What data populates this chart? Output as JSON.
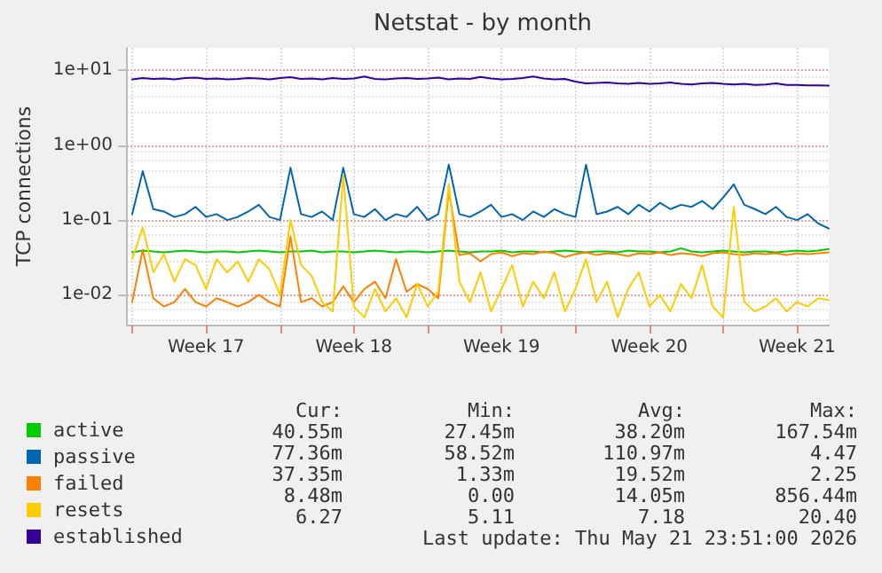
{
  "chart_data": {
    "type": "line",
    "title": "Netstat - by month",
    "ylabel": "TCP connections",
    "log": "y",
    "grid": true,
    "legend": "bottom left",
    "marker": "none",
    "line_style": "solid",
    "xlim": [
      "2026-04-18T18:00",
      "2026-05-22T00:00"
    ],
    "xticks": [
      {
        "value": "2026-04-19T00:00",
        "label": null
      },
      {
        "value": "2026-04-22T12:00",
        "label": "Week 17"
      },
      {
        "value": "2026-04-26T00:00",
        "label": null
      },
      {
        "value": "2026-04-29T12:00",
        "label": "Week 18"
      },
      {
        "value": "2026-05-03T00:00",
        "label": null
      },
      {
        "value": "2026-05-06T12:00",
        "label": "Week 19"
      },
      {
        "value": "2026-05-10T00:00",
        "label": null
      },
      {
        "value": "2026-05-13T12:00",
        "label": "Week 20"
      },
      {
        "value": "2026-05-17T00:00",
        "label": null
      },
      {
        "value": "2026-05-20T12:00",
        "label": "Week 21"
      }
    ],
    "ylim": [
      0.004,
      20
    ],
    "yticks": [
      {
        "value": 0.01,
        "label": "1e-02"
      },
      {
        "value": 0.1,
        "label": "1e-01"
      },
      {
        "value": 1,
        "label": "1e+00"
      },
      {
        "value": 10,
        "label": "1e+01"
      }
    ],
    "x": [
      "2026-04-19T00:00",
      "2026-04-19T12:00",
      "2026-04-20T00:00",
      "2026-04-20T12:00",
      "2026-04-21T00:00",
      "2026-04-21T12:00",
      "2026-04-22T00:00",
      "2026-04-22T12:00",
      "2026-04-23T00:00",
      "2026-04-23T12:00",
      "2026-04-24T00:00",
      "2026-04-24T12:00",
      "2026-04-25T00:00",
      "2026-04-25T12:00",
      "2026-04-26T00:00",
      "2026-04-26T12:00",
      "2026-04-27T00:00",
      "2026-04-27T12:00",
      "2026-04-28T00:00",
      "2026-04-28T12:00",
      "2026-04-29T00:00",
      "2026-04-29T12:00",
      "2026-04-30T00:00",
      "2026-04-30T12:00",
      "2026-05-01T00:00",
      "2026-05-01T12:00",
      "2026-05-02T00:00",
      "2026-05-02T12:00",
      "2026-05-03T00:00",
      "2026-05-03T12:00",
      "2026-05-04T00:00",
      "2026-05-04T12:00",
      "2026-05-05T00:00",
      "2026-05-05T12:00",
      "2026-05-06T00:00",
      "2026-05-06T12:00",
      "2026-05-07T00:00",
      "2026-05-07T12:00",
      "2026-05-08T00:00",
      "2026-05-08T12:00",
      "2026-05-09T00:00",
      "2026-05-09T12:00",
      "2026-05-10T00:00",
      "2026-05-10T12:00",
      "2026-05-11T00:00",
      "2026-05-11T12:00",
      "2026-05-12T00:00",
      "2026-05-12T12:00",
      "2026-05-13T00:00",
      "2026-05-13T12:00",
      "2026-05-14T00:00",
      "2026-05-14T12:00",
      "2026-05-15T00:00",
      "2026-05-15T12:00",
      "2026-05-16T00:00",
      "2026-05-16T12:00",
      "2026-05-17T00:00",
      "2026-05-17T12:00",
      "2026-05-18T00:00",
      "2026-05-18T12:00",
      "2026-05-19T00:00",
      "2026-05-19T12:00",
      "2026-05-20T00:00",
      "2026-05-20T12:00",
      "2026-05-21T00:00",
      "2026-05-21T12:00",
      "2026-05-22T00:00"
    ],
    "series": [
      {
        "name": "active",
        "color": "#00cc00",
        "values": [
          0.037,
          0.039,
          0.038,
          0.037,
          0.038,
          0.039,
          0.038,
          0.037,
          0.038,
          0.038,
          0.037,
          0.038,
          0.039,
          0.038,
          0.037,
          0.038,
          0.038,
          0.039,
          0.037,
          0.038,
          0.038,
          0.037,
          0.038,
          0.039,
          0.038,
          0.037,
          0.038,
          0.038,
          0.037,
          0.038,
          0.039,
          0.038,
          0.037,
          0.038,
          0.038,
          0.039,
          0.037,
          0.038,
          0.038,
          0.037,
          0.038,
          0.039,
          0.038,
          0.037,
          0.038,
          0.038,
          0.037,
          0.039,
          0.038,
          0.038,
          0.037,
          0.038,
          0.042,
          0.038,
          0.037,
          0.038,
          0.039,
          0.038,
          0.037,
          0.038,
          0.038,
          0.037,
          0.038,
          0.039,
          0.038,
          0.039,
          0.041
        ]
      },
      {
        "name": "passive",
        "color": "#0066b3",
        "values": [
          0.12,
          0.45,
          0.14,
          0.13,
          0.11,
          0.12,
          0.15,
          0.11,
          0.12,
          0.1,
          0.11,
          0.13,
          0.16,
          0.11,
          0.1,
          0.5,
          0.12,
          0.11,
          0.13,
          0.1,
          0.5,
          0.12,
          0.11,
          0.14,
          0.1,
          0.12,
          0.11,
          0.15,
          0.1,
          0.12,
          0.55,
          0.12,
          0.11,
          0.13,
          0.16,
          0.11,
          0.12,
          0.1,
          0.13,
          0.11,
          0.14,
          0.12,
          0.11,
          0.55,
          0.12,
          0.13,
          0.15,
          0.12,
          0.16,
          0.13,
          0.17,
          0.14,
          0.16,
          0.15,
          0.18,
          0.14,
          0.2,
          0.3,
          0.16,
          0.14,
          0.12,
          0.15,
          0.11,
          0.1,
          0.12,
          0.09,
          0.077
        ]
      },
      {
        "name": "failed",
        "color": "#ff8000",
        "values": [
          0.008,
          0.04,
          0.009,
          0.007,
          0.008,
          0.012,
          0.008,
          0.007,
          0.009,
          0.008,
          0.007,
          0.008,
          0.01,
          0.008,
          0.007,
          0.06,
          0.008,
          0.009,
          0.007,
          0.008,
          0.013,
          0.008,
          0.012,
          0.015,
          0.009,
          0.03,
          0.011,
          0.014,
          0.012,
          0.009,
          0.25,
          0.034,
          0.036,
          0.028,
          0.035,
          0.037,
          0.033,
          0.036,
          0.035,
          0.038,
          0.036,
          0.032,
          0.035,
          0.037,
          0.034,
          0.036,
          0.035,
          0.033,
          0.036,
          0.035,
          0.037,
          0.034,
          0.036,
          0.035,
          0.033,
          0.036,
          0.037,
          0.035,
          0.034,
          0.036,
          0.035,
          0.036,
          0.034,
          0.036,
          0.035,
          0.036,
          0.037
        ]
      },
      {
        "name": "resets",
        "color": "#ffcc00",
        "values": [
          0.03,
          0.08,
          0.02,
          0.035,
          0.015,
          0.03,
          0.025,
          0.012,
          0.03,
          0.02,
          0.028,
          0.015,
          0.03,
          0.022,
          0.01,
          0.1,
          0.025,
          0.018,
          0.008,
          0.006,
          0.4,
          0.007,
          0.005,
          0.012,
          0.006,
          0.009,
          0.005,
          0.014,
          0.007,
          0.011,
          0.3,
          0.015,
          0.008,
          0.02,
          0.006,
          0.012,
          0.025,
          0.007,
          0.015,
          0.009,
          0.02,
          0.006,
          0.012,
          0.03,
          0.008,
          0.015,
          0.005,
          0.012,
          0.02,
          0.007,
          0.01,
          0.006,
          0.014,
          0.009,
          0.025,
          0.007,
          0.005,
          0.15,
          0.008,
          0.006,
          0.007,
          0.009,
          0.006,
          0.008,
          0.007,
          0.009,
          0.0085
        ]
      },
      {
        "name": "established",
        "color": "#330099",
        "values": [
          7.6,
          7.9,
          7.7,
          7.8,
          7.6,
          7.9,
          8.0,
          7.7,
          7.8,
          7.6,
          7.7,
          7.9,
          7.8,
          7.6,
          7.9,
          8.1,
          7.7,
          7.8,
          7.6,
          7.9,
          7.7,
          7.8,
          8.3,
          7.7,
          7.6,
          7.8,
          7.9,
          7.7,
          7.8,
          8.0,
          7.6,
          7.8,
          7.7,
          8.2,
          7.8,
          7.6,
          7.7,
          7.9,
          8.3,
          7.8,
          7.6,
          7.7,
          7.1,
          6.7,
          6.8,
          6.9,
          6.7,
          6.6,
          6.8,
          6.6,
          6.7,
          6.9,
          6.6,
          6.5,
          6.7,
          6.8,
          6.6,
          6.5,
          6.6,
          6.4,
          6.5,
          6.7,
          6.4,
          6.4,
          6.3,
          6.3,
          6.27
        ]
      }
    ],
    "annotations": [
      "Cur:",
      "Min:",
      "Avg:",
      "Max:",
      "40.55m",
      "27.45m",
      "38.20m",
      "167.54m",
      "77.36m",
      "58.52m",
      "110.97m",
      "4.47",
      "37.35m",
      "1.33m",
      "19.52m",
      "2.25",
      "8.48m",
      "0.00",
      "14.05m",
      "856.44m",
      "6.27",
      "5.11",
      "7.18",
      "20.40",
      "Last update: Thu May 21 23:51:00 2026"
    ]
  }
}
